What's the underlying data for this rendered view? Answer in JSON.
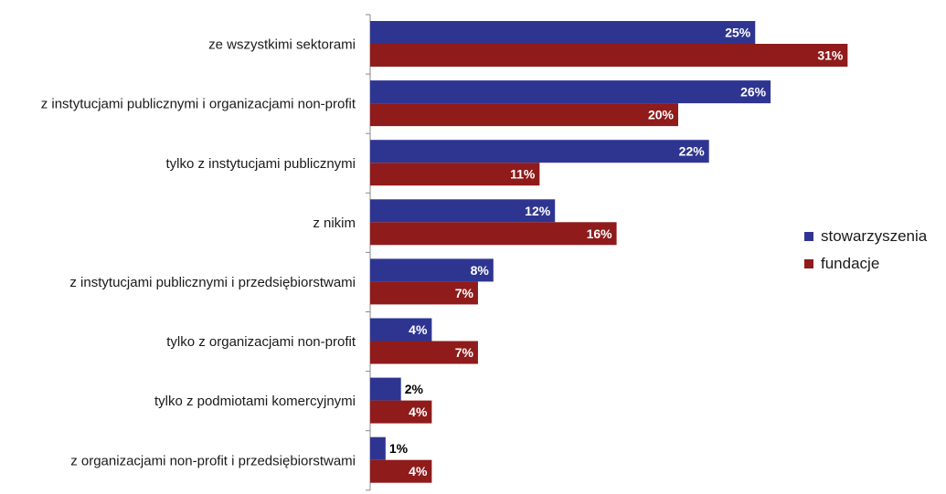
{
  "chart_data": {
    "type": "bar",
    "orientation": "horizontal",
    "categories": [
      "ze wszystkimi sektorami",
      "z instytucjami publicznymi i organizacjami non-profit",
      "tylko z instytucjami publicznymi",
      "z nikim",
      "z instytucjami publicznymi i przedsiębiorstwami",
      "tylko z organizacjami non-profit",
      "tylko z podmiotami komercyjnymi",
      "z organizacjami non-profit i przedsiębiorstwami"
    ],
    "series": [
      {
        "name": "stowarzyszenia",
        "color": "#2e3591",
        "values": [
          25,
          26,
          22,
          12,
          8,
          4,
          2,
          1
        ]
      },
      {
        "name": "fundacje",
        "color": "#8f1b1b",
        "values": [
          31,
          20,
          11,
          16,
          7,
          7,
          4,
          4
        ]
      }
    ],
    "value_suffix": "%",
    "xlim": [
      0,
      36
    ],
    "grid": false,
    "legend_position": "right"
  }
}
